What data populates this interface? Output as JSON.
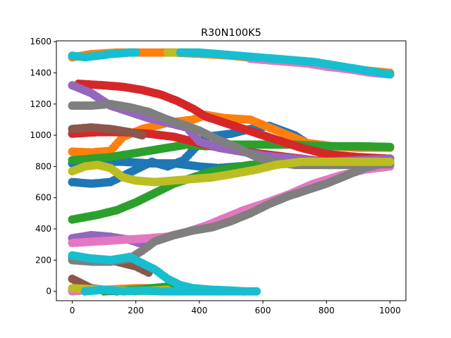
{
  "chart_data": {
    "type": "scatter",
    "title": "R30N100K5",
    "xlabel": "",
    "ylabel": "",
    "xlim": [
      -50,
      1050
    ],
    "ylim": [
      -60,
      1605
    ],
    "xticks": [
      0,
      200,
      400,
      600,
      800,
      1000
    ],
    "yticks": [
      0,
      200,
      400,
      600,
      800,
      1000,
      1200,
      1400,
      1600
    ],
    "grid": false,
    "legend": "none",
    "colors": [
      "#1f77b4",
      "#ff7f0e",
      "#2ca02c",
      "#d62728",
      "#9467bd",
      "#8c564b",
      "#e377c2",
      "#7f7f7f",
      "#bcbd22",
      "#17becf"
    ],
    "series": [
      {
        "color": "#1f77b4",
        "points": [
          [
            0,
            700
          ],
          [
            60,
            690
          ],
          [
            120,
            700
          ],
          [
            180,
            760
          ],
          [
            220,
            800
          ],
          [
            250,
            830
          ],
          [
            300,
            800
          ],
          [
            350,
            840
          ],
          [
            420,
            990
          ],
          [
            500,
            1010
          ],
          [
            560,
            1040
          ],
          [
            620,
            1060
          ],
          [
            700,
            1000
          ],
          [
            800,
            870
          ],
          [
            900,
            840
          ],
          [
            1000,
            830
          ]
        ]
      },
      {
        "color": "#1f77b4",
        "points": [
          [
            0,
            820
          ],
          [
            80,
            830
          ],
          [
            160,
            830
          ],
          [
            240,
            820
          ],
          [
            320,
            820
          ],
          [
            400,
            800
          ],
          [
            460,
            790
          ],
          [
            520,
            800
          ],
          [
            600,
            810
          ],
          [
            700,
            820
          ],
          [
            800,
            820
          ],
          [
            900,
            820
          ],
          [
            1000,
            825
          ]
        ]
      },
      {
        "color": "#ff7f0e",
        "points": [
          [
            0,
            895
          ],
          [
            60,
            890
          ],
          [
            120,
            900
          ],
          [
            160,
            990
          ],
          [
            220,
            1040
          ],
          [
            300,
            1080
          ],
          [
            380,
            1100
          ],
          [
            420,
            1130
          ],
          [
            480,
            1110
          ],
          [
            560,
            1100
          ],
          [
            620,
            1050
          ],
          [
            680,
            1000
          ],
          [
            740,
            950
          ],
          [
            820,
            930
          ],
          [
            900,
            920
          ],
          [
            1000,
            920
          ]
        ]
      },
      {
        "color": "#ff7f0e",
        "points": [
          [
            0,
            10
          ],
          [
            100,
            10
          ],
          [
            200,
            20
          ],
          [
            300,
            20
          ],
          [
            400,
            10
          ],
          [
            480,
            5
          ]
        ]
      },
      {
        "color": "#ff7f0e",
        "points": [
          [
            0,
            1500
          ],
          [
            60,
            1520
          ],
          [
            140,
            1530
          ],
          [
            200,
            1530
          ],
          [
            320,
            1530
          ],
          [
            420,
            1520
          ],
          [
            500,
            1510
          ],
          [
            600,
            1490
          ],
          [
            700,
            1480
          ],
          [
            800,
            1440
          ],
          [
            900,
            1420
          ],
          [
            1000,
            1400
          ]
        ]
      },
      {
        "color": "#2ca02c",
        "points": [
          [
            0,
            460
          ],
          [
            80,
            490
          ],
          [
            140,
            520
          ],
          [
            200,
            570
          ],
          [
            260,
            630
          ],
          [
            320,
            690
          ],
          [
            380,
            730
          ],
          [
            440,
            770
          ],
          [
            500,
            790
          ],
          [
            560,
            810
          ],
          [
            640,
            820
          ],
          [
            720,
            830
          ],
          [
            800,
            830
          ],
          [
            900,
            830
          ],
          [
            1000,
            830
          ]
        ]
      },
      {
        "color": "#2ca02c",
        "points": [
          [
            0,
            840
          ],
          [
            60,
            850
          ],
          [
            120,
            860
          ],
          [
            180,
            880
          ],
          [
            240,
            900
          ],
          [
            300,
            920
          ],
          [
            360,
            940
          ],
          [
            420,
            930
          ],
          [
            500,
            940
          ],
          [
            600,
            940
          ],
          [
            700,
            940
          ],
          [
            800,
            930
          ],
          [
            900,
            930
          ],
          [
            1000,
            925
          ]
        ]
      },
      {
        "color": "#2ca02c",
        "points": [
          [
            100,
            0
          ],
          [
            200,
            10
          ],
          [
            300,
            30
          ],
          [
            360,
            10
          ]
        ]
      },
      {
        "color": "#d62728",
        "points": [
          [
            20,
            1330
          ],
          [
            100,
            1320
          ],
          [
            160,
            1310
          ],
          [
            220,
            1290
          ],
          [
            280,
            1260
          ],
          [
            330,
            1220
          ],
          [
            380,
            1170
          ],
          [
            420,
            1120
          ],
          [
            480,
            1080
          ],
          [
            540,
            1040
          ],
          [
            600,
            1000
          ],
          [
            660,
            960
          ],
          [
            720,
            920
          ],
          [
            800,
            880
          ],
          [
            900,
            860
          ],
          [
            1000,
            850
          ]
        ]
      },
      {
        "color": "#d62728",
        "points": [
          [
            0,
            1010
          ],
          [
            80,
            1020
          ],
          [
            160,
            1020
          ],
          [
            240,
            1010
          ],
          [
            320,
            990
          ],
          [
            380,
            960
          ],
          [
            440,
            930
          ],
          [
            520,
            900
          ],
          [
            600,
            880
          ],
          [
            680,
            860
          ],
          [
            760,
            840
          ],
          [
            860,
            830
          ],
          [
            1000,
            820
          ]
        ]
      },
      {
        "color": "#9467bd",
        "points": [
          [
            0,
            1320
          ],
          [
            60,
            1270
          ],
          [
            120,
            1190
          ],
          [
            180,
            1150
          ],
          [
            240,
            1110
          ],
          [
            300,
            1080
          ],
          [
            360,
            1050
          ],
          [
            400,
            960
          ],
          [
            460,
            920
          ],
          [
            520,
            900
          ],
          [
            600,
            870
          ],
          [
            700,
            850
          ],
          [
            800,
            830
          ],
          [
            900,
            840
          ],
          [
            1000,
            850
          ]
        ]
      },
      {
        "color": "#9467bd",
        "points": [
          [
            0,
            340
          ],
          [
            60,
            360
          ],
          [
            120,
            350
          ],
          [
            180,
            330
          ],
          [
            240,
            290
          ]
        ]
      },
      {
        "color": "#8c564b",
        "points": [
          [
            0,
            1040
          ],
          [
            60,
            1050
          ],
          [
            120,
            1040
          ],
          [
            180,
            1020
          ],
          [
            220,
            1000
          ]
        ]
      },
      {
        "color": "#8c564b",
        "points": [
          [
            0,
            80
          ],
          [
            20,
            60
          ],
          [
            60,
            20
          ],
          [
            100,
            10
          ],
          [
            140,
            0
          ]
        ]
      },
      {
        "color": "#8c564b",
        "points": [
          [
            0,
            220
          ],
          [
            60,
            210
          ],
          [
            120,
            200
          ],
          [
            160,
            180
          ],
          [
            200,
            160
          ],
          [
            240,
            120
          ]
        ]
      },
      {
        "color": "#e377c2",
        "points": [
          [
            0,
            310
          ],
          [
            80,
            320
          ],
          [
            160,
            330
          ],
          [
            240,
            340
          ],
          [
            300,
            350
          ],
          [
            360,
            380
          ],
          [
            420,
            420
          ],
          [
            480,
            470
          ],
          [
            540,
            520
          ],
          [
            600,
            560
          ],
          [
            680,
            620
          ],
          [
            760,
            690
          ],
          [
            840,
            740
          ],
          [
            920,
            780
          ],
          [
            1000,
            800
          ]
        ]
      },
      {
        "color": "#e377c2",
        "points": [
          [
            0,
            0
          ],
          [
            60,
            10
          ],
          [
            140,
            10
          ]
        ]
      },
      {
        "color": "#e377c2",
        "points": [
          [
            560,
            1490
          ],
          [
            620,
            1480
          ],
          [
            680,
            1470
          ],
          [
            740,
            1460
          ],
          [
            800,
            1440
          ],
          [
            880,
            1420
          ],
          [
            940,
            1400
          ],
          [
            1000,
            1390
          ]
        ]
      },
      {
        "color": "#7f7f7f",
        "points": [
          [
            0,
            1190
          ],
          [
            60,
            1190
          ],
          [
            120,
            1200
          ],
          [
            180,
            1180
          ],
          [
            240,
            1150
          ],
          [
            300,
            1100
          ],
          [
            360,
            1060
          ],
          [
            400,
            1030
          ],
          [
            460,
            970
          ],
          [
            520,
            920
          ],
          [
            580,
            860
          ],
          [
            640,
            830
          ],
          [
            700,
            810
          ],
          [
            800,
            810
          ],
          [
            900,
            810
          ],
          [
            1000,
            815
          ]
        ]
      },
      {
        "color": "#7f7f7f",
        "points": [
          [
            0,
            200
          ],
          [
            60,
            190
          ],
          [
            120,
            190
          ],
          [
            180,
            210
          ],
          [
            220,
            260
          ],
          [
            260,
            320
          ],
          [
            320,
            360
          ],
          [
            380,
            390
          ],
          [
            440,
            410
          ],
          [
            500,
            450
          ],
          [
            560,
            500
          ],
          [
            620,
            560
          ],
          [
            680,
            610
          ],
          [
            740,
            650
          ],
          [
            800,
            690
          ],
          [
            860,
            740
          ],
          [
            920,
            790
          ],
          [
            1000,
            830
          ]
        ]
      },
      {
        "color": "#bcbd22",
        "points": [
          [
            0,
            770
          ],
          [
            40,
            800
          ],
          [
            80,
            810
          ],
          [
            120,
            790
          ],
          [
            160,
            730
          ],
          [
            200,
            710
          ],
          [
            260,
            700
          ],
          [
            320,
            710
          ],
          [
            380,
            720
          ],
          [
            440,
            730
          ],
          [
            500,
            750
          ],
          [
            580,
            780
          ],
          [
            640,
            810
          ],
          [
            720,
            830
          ],
          [
            800,
            830
          ],
          [
            900,
            830
          ],
          [
            1000,
            830
          ]
        ]
      },
      {
        "color": "#bcbd22",
        "points": [
          [
            300,
            1530
          ],
          [
            360,
            1530
          ]
        ]
      },
      {
        "color": "#bcbd22",
        "points": [
          [
            0,
            20
          ],
          [
            100,
            10
          ],
          [
            200,
            0
          ],
          [
            300,
            10
          ]
        ]
      },
      {
        "color": "#17becf",
        "points": [
          [
            0,
            1510
          ],
          [
            40,
            1500
          ],
          [
            80,
            1510
          ],
          [
            120,
            1520
          ],
          [
            180,
            1530
          ],
          [
            200,
            1530
          ]
        ]
      },
      {
        "color": "#17becf",
        "points": [
          [
            340,
            1530
          ],
          [
            400,
            1530
          ],
          [
            460,
            1520
          ],
          [
            520,
            1510
          ],
          [
            580,
            1500
          ],
          [
            640,
            1490
          ],
          [
            700,
            1480
          ],
          [
            760,
            1470
          ],
          [
            820,
            1450
          ],
          [
            880,
            1430
          ],
          [
            940,
            1410
          ],
          [
            1000,
            1390
          ]
        ]
      },
      {
        "color": "#17becf",
        "points": [
          [
            0,
            230
          ],
          [
            60,
            210
          ],
          [
            120,
            200
          ],
          [
            180,
            220
          ],
          [
            220,
            180
          ],
          [
            260,
            140
          ],
          [
            300,
            80
          ],
          [
            340,
            40
          ],
          [
            380,
            20
          ],
          [
            440,
            10
          ],
          [
            500,
            5
          ],
          [
            540,
            0
          ]
        ]
      },
      {
        "color": "#17becf",
        "points": [
          [
            40,
            0
          ],
          [
            100,
            10
          ],
          [
            160,
            0
          ],
          [
            220,
            5
          ],
          [
            280,
            0
          ],
          [
            580,
            0
          ]
        ]
      }
    ]
  }
}
